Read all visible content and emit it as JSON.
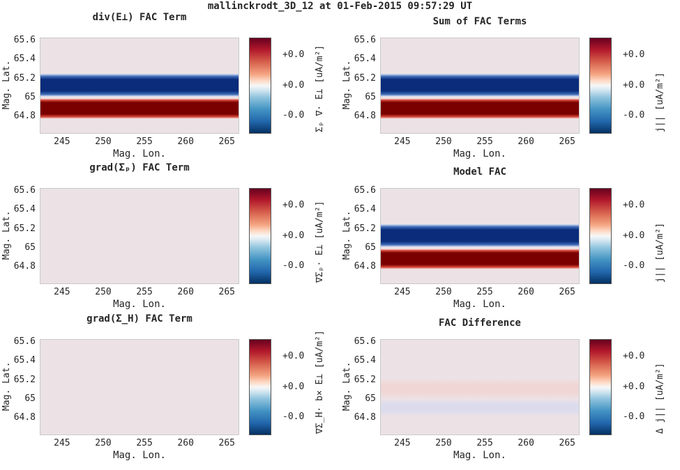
{
  "title": "mallinckrodt_3D_12 at 01-Feb-2015 09:57:29 UT",
  "colors": {
    "background": "#ffffff",
    "neutral": "#ece2e6",
    "red": "#7a0000",
    "blue": "#0a2c7a"
  },
  "colorbar_ticks": [
    "+0.0",
    "+0.0",
    "-0.0"
  ],
  "chart_data": [
    {
      "type": "heatmap",
      "title": "div(E⊥) FAC Term",
      "xlabel": "Mag. Lon.",
      "ylabel": "Mag. Lat.",
      "xticks": [
        "245",
        "250",
        "255",
        "260",
        "265"
      ],
      "yticks": [
        "65.6",
        "65.4",
        "65.2",
        "65",
        "64.8"
      ],
      "xlim": [
        242.3,
        266.5
      ],
      "ylim": [
        64.62,
        65.63
      ],
      "colorbar_label": "Σₚ ∇· E⊥ [uA/m²]",
      "bands": [
        {
          "lat_min": 65.01,
          "lat_max": 65.25,
          "value": -1.0
        },
        {
          "lat_min": 64.78,
          "lat_max": 64.99,
          "value": 1.0
        }
      ]
    },
    {
      "type": "heatmap",
      "title": "Sum of FAC Terms",
      "xlabel": "Mag. Lon.",
      "ylabel": "Mag. Lat.",
      "xticks": [
        "245",
        "250",
        "255",
        "260",
        "265"
      ],
      "yticks": [
        "65.6",
        "65.4",
        "65.2",
        "65",
        "64.8"
      ],
      "xlim": [
        242.3,
        266.5
      ],
      "ylim": [
        64.62,
        65.63
      ],
      "colorbar_label": "j|| [uA/m²]",
      "bands": [
        {
          "lat_min": 65.01,
          "lat_max": 65.25,
          "value": -1.0
        },
        {
          "lat_min": 64.78,
          "lat_max": 64.99,
          "value": 1.0
        }
      ]
    },
    {
      "type": "heatmap",
      "title": "grad(Σₚ) FAC Term",
      "xlabel": "Mag. Lon.",
      "ylabel": "Mag. Lat.",
      "xticks": [
        "245",
        "250",
        "255",
        "260",
        "265"
      ],
      "yticks": [
        "65.6",
        "65.4",
        "65.2",
        "65",
        "64.8"
      ],
      "xlim": [
        242.3,
        266.5
      ],
      "ylim": [
        64.62,
        65.63
      ],
      "colorbar_label": "∇Σₚ· E⊥ [uA/m²]",
      "bands": []
    },
    {
      "type": "heatmap",
      "title": "Model FAC",
      "xlabel": "Mag. Lon.",
      "ylabel": "Mag. Lat.",
      "xticks": [
        "245",
        "250",
        "255",
        "260",
        "265"
      ],
      "yticks": [
        "65.6",
        "65.4",
        "65.2",
        "65",
        "64.8"
      ],
      "xlim": [
        242.3,
        266.5
      ],
      "ylim": [
        64.62,
        65.63
      ],
      "colorbar_label": "j|| [uA/m²]",
      "bands": [
        {
          "lat_min": 65.01,
          "lat_max": 65.25,
          "value": -1.0
        },
        {
          "lat_min": 64.78,
          "lat_max": 64.99,
          "value": 1.0
        }
      ]
    },
    {
      "type": "heatmap",
      "title": "grad(Σ_H) FAC Term",
      "xlabel": "Mag. Lon.",
      "ylabel": "Mag. Lat.",
      "xticks": [
        "245",
        "250",
        "255",
        "260",
        "265"
      ],
      "yticks": [
        "65.6",
        "65.4",
        "65.2",
        "65",
        "64.8"
      ],
      "xlim": [
        242.3,
        266.5
      ],
      "ylim": [
        64.62,
        65.63
      ],
      "colorbar_label": "∇Σ_H· b× E⊥ [uA/m²]",
      "bands": []
    },
    {
      "type": "heatmap",
      "title": "FAC Difference",
      "xlabel": "Mag. Lon.",
      "ylabel": "Mag. Lat.",
      "xticks": [
        "245",
        "250",
        "255",
        "260",
        "265"
      ],
      "yticks": [
        "65.6",
        "65.4",
        "65.2",
        "65",
        "64.8"
      ],
      "xlim": [
        242.3,
        266.5
      ],
      "ylim": [
        64.62,
        65.63
      ],
      "colorbar_label": "Δ j|| [uA/m²]",
      "bands": [
        {
          "lat_min": 65.0,
          "lat_max": 65.22,
          "value": 0.06
        },
        {
          "lat_min": 64.82,
          "lat_max": 65.0,
          "value": -0.06
        }
      ]
    }
  ]
}
